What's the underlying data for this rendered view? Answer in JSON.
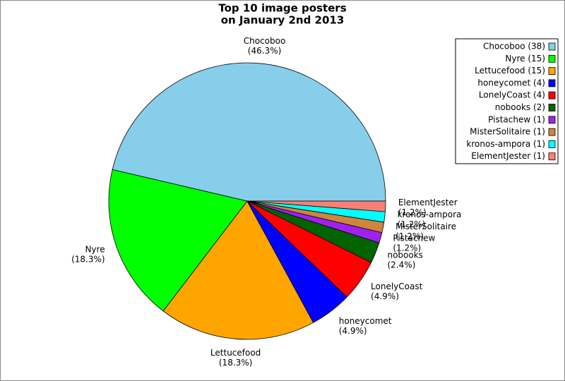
{
  "chart_data": {
    "type": "pie",
    "title": [
      "Top 10 image posters",
      "on January 2nd 2013"
    ],
    "categories": [
      "Chocoboo",
      "Nyre",
      "Lettucefood",
      "honeycomet",
      "LonelyCoast",
      "nobooks",
      "Pistachew",
      "MisterSolitaire",
      "kronos-ampora",
      "ElementJester"
    ],
    "values": [
      38,
      15,
      15,
      4,
      4,
      2,
      1,
      1,
      1,
      1
    ],
    "value_labels": [
      "(46.3%)",
      "(18.3%)",
      "(18.3%)",
      "(4.9%)",
      "(4.9%)",
      "(2.4%)",
      "(1.2%)",
      "(1.2%)",
      "(1.2%)",
      "(1.2%)"
    ],
    "legend_labels": [
      "Chocoboo (38)",
      "Nyre (15)",
      "Lettucefood (15)",
      "honeycomet (4)",
      "LonelyCoast (4)",
      "nobooks (2)",
      "Pistachew (1)",
      "MisterSolitaire (1)",
      "kronos-ampora (1)",
      "ElementJester (1)"
    ],
    "colors": [
      "#87ceeb",
      "#00ff00",
      "#ffa500",
      "#0000ff",
      "#ff0000",
      "#006400",
      "#a020f0",
      "#cd853f",
      "#00ffff",
      "#fa8072"
    ],
    "legend": "upper right"
  }
}
